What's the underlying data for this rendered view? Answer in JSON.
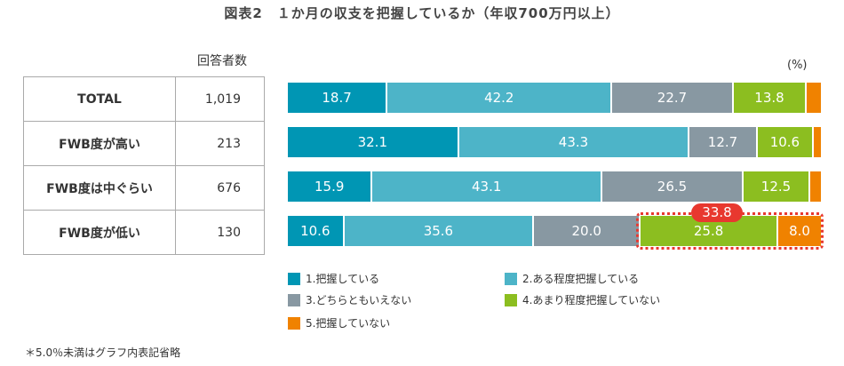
{
  "chart_data": {
    "type": "bar",
    "orientation": "horizontal",
    "stacked": true,
    "title": "図表2　１か月の収支を把握しているか（年収700万円以上）",
    "unit": "(%)",
    "respondents_header": "回答者数",
    "categories": [
      "TOTAL",
      "FWB度が高い",
      "FWB度は中ぐらい",
      "FWB度が低い"
    ],
    "respondents": [
      "1,019",
      "213",
      "676",
      "130"
    ],
    "series": [
      {
        "name": "1.把握している",
        "color": "#0096b4",
        "values": [
          18.7,
          32.1,
          15.9,
          10.6
        ]
      },
      {
        "name": "2.ある程度把握している",
        "color": "#4db4c8",
        "values": [
          42.2,
          43.3,
          43.1,
          35.6
        ]
      },
      {
        "name": "3.どちらともいえない",
        "color": "#8898a2",
        "values": [
          22.7,
          12.7,
          26.5,
          20.0
        ]
      },
      {
        "name": "4.あまり程度把握していない",
        "color": "#8cbe20",
        "values": [
          13.8,
          10.6,
          12.5,
          25.8
        ]
      },
      {
        "name": "5.把握していない",
        "color": "#f08200",
        "values": [
          2.6,
          1.3,
          2.0,
          8.0
        ]
      }
    ],
    "xlim": [
      0,
      100
    ],
    "label_threshold": 5.0,
    "annotation": {
      "category": "FWB度が低い",
      "text": "33.8",
      "color": "#e8382f"
    },
    "note": "＊5.0％未満はグラフ内表記省略"
  }
}
